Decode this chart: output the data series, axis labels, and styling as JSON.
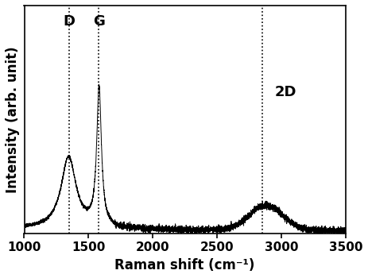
{
  "title": "",
  "xlabel": "Raman shift (cm⁻¹)",
  "ylabel": "Intensity (arb. unit)",
  "xlim": [
    1000,
    3500
  ],
  "D_peak": 1350,
  "G_peak": 1580,
  "twoD_peak": 2850,
  "xticks": [
    1000,
    1500,
    2000,
    2500,
    3000,
    3500
  ],
  "line_color": "#000000",
  "background_color": "#ffffff",
  "label_fontsize": 12,
  "tick_fontsize": 11,
  "annotation_fontsize": 13,
  "ylim": [
    0,
    1.65
  ]
}
